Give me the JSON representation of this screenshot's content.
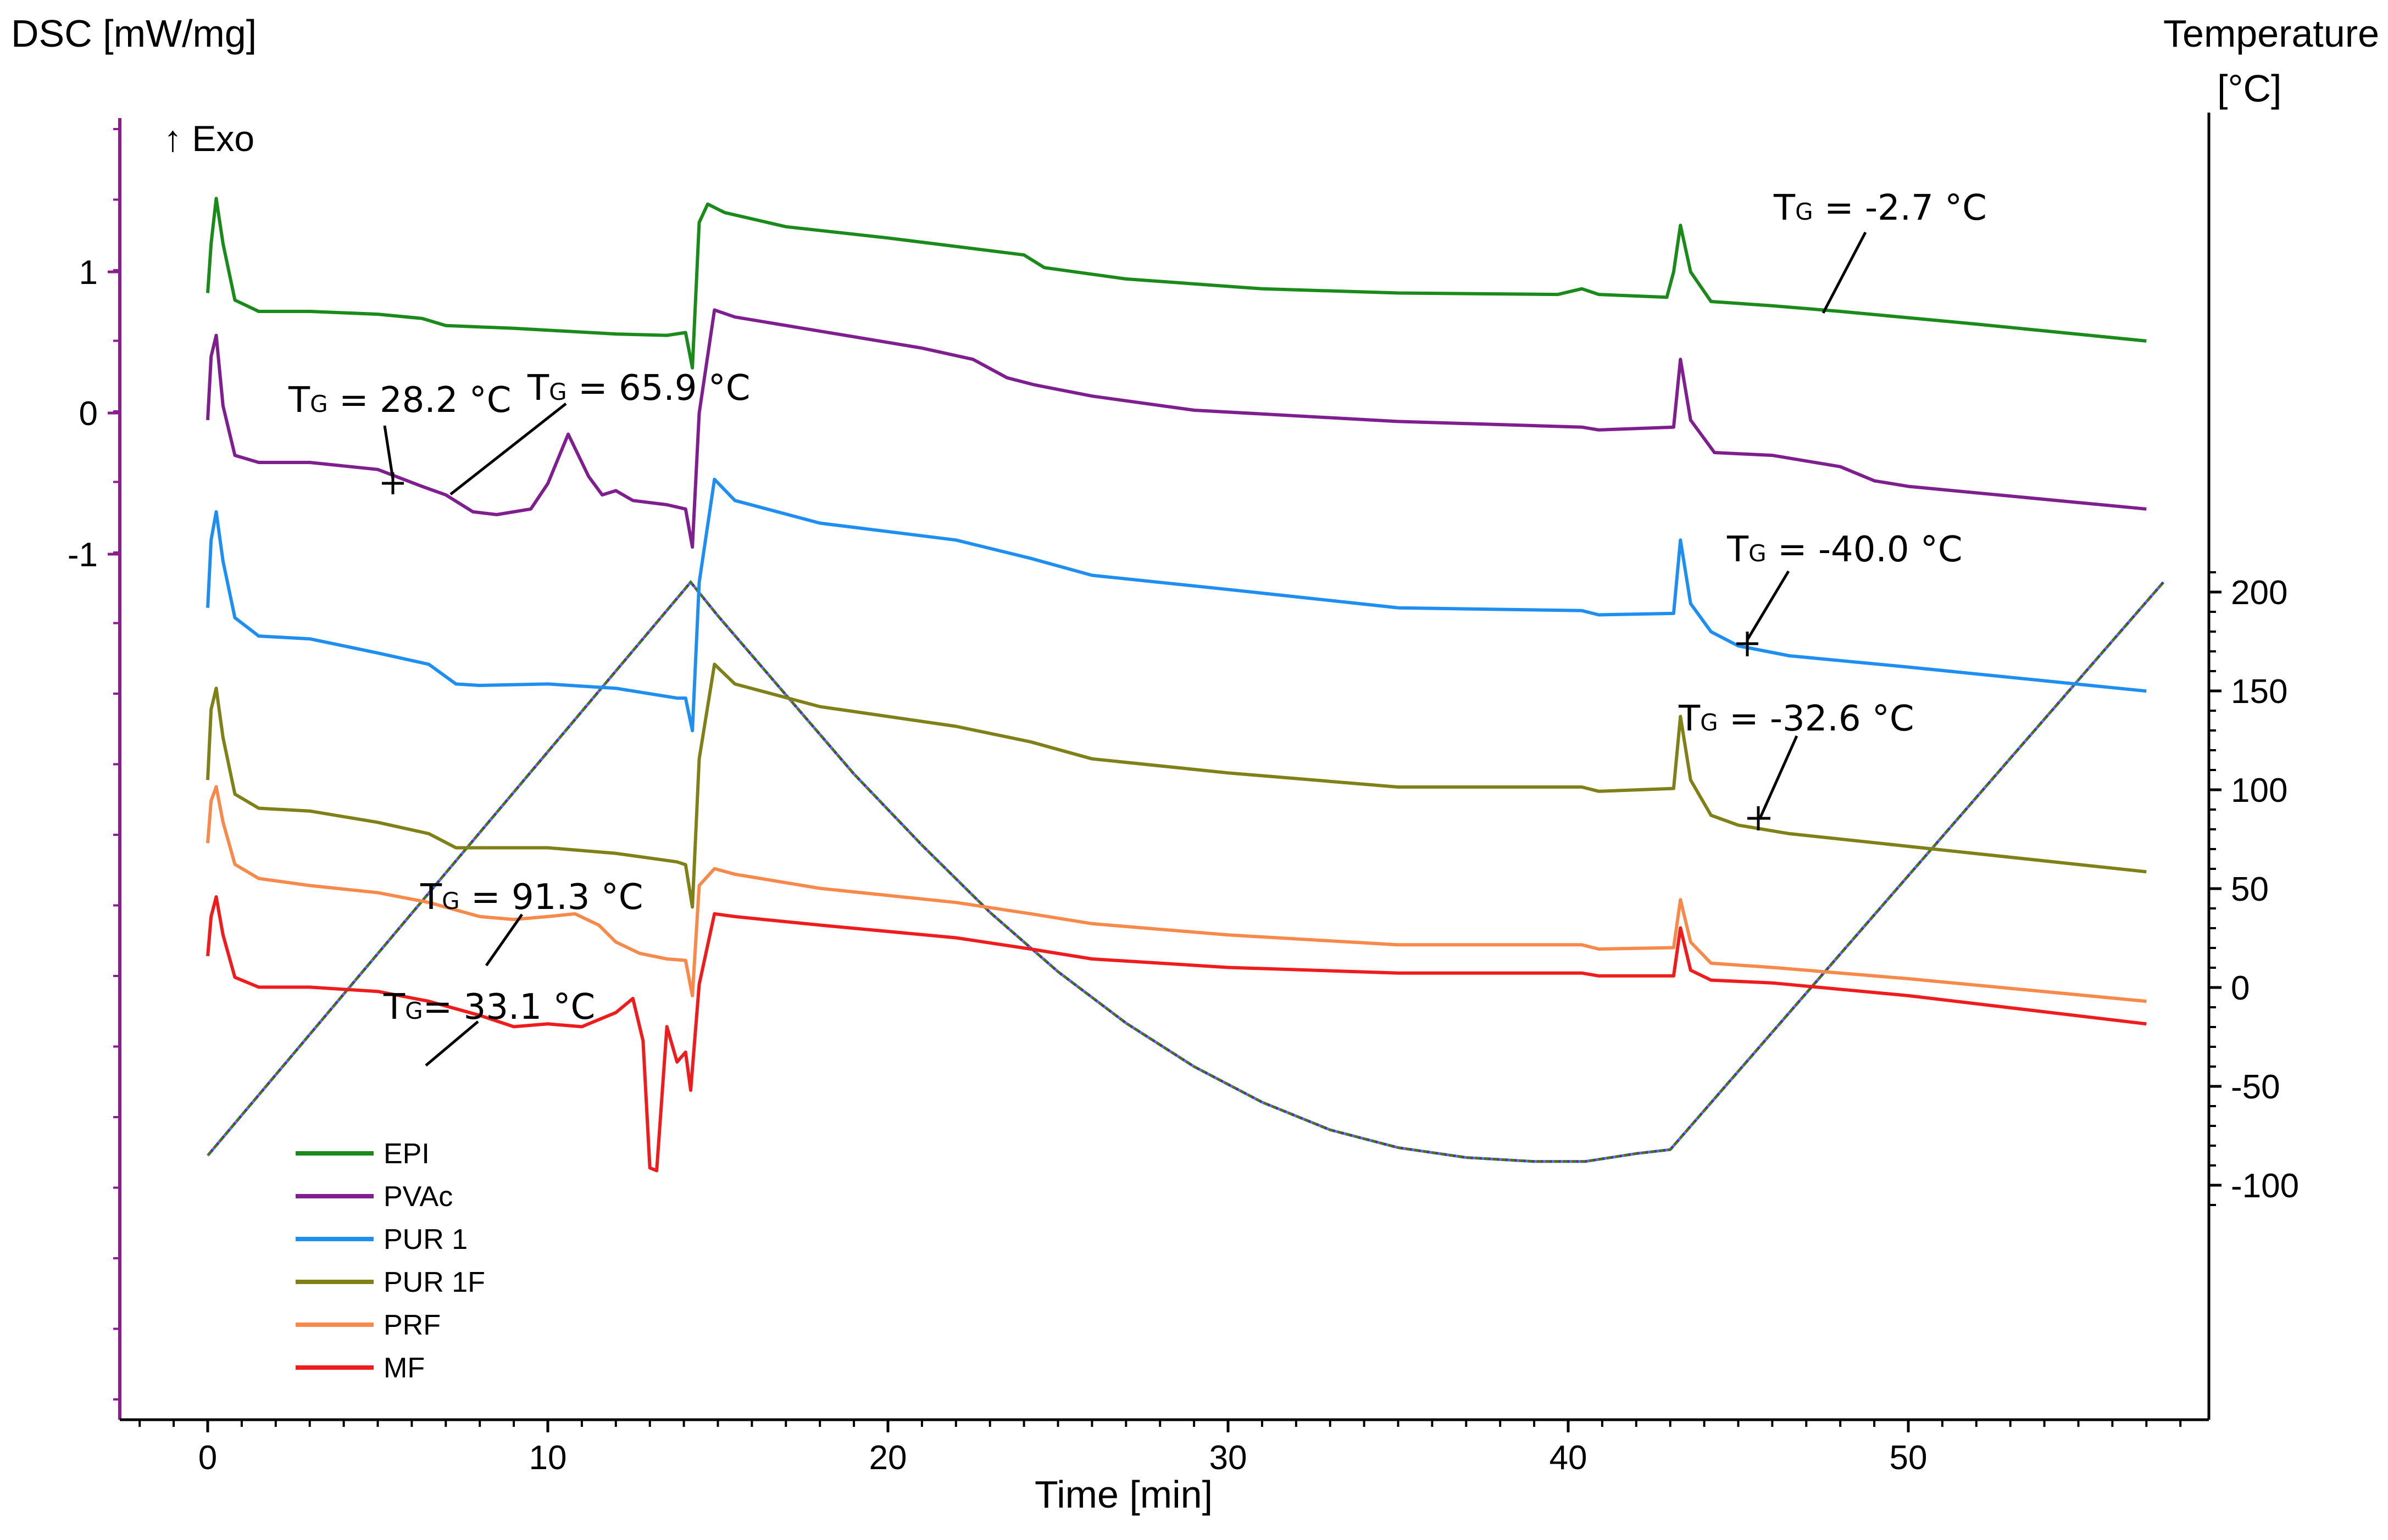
{
  "chart_data": {
    "type": "line",
    "title": "",
    "xlabel": "Time [min]",
    "ylabel_left": "DSC [mW/mg]",
    "ylabel_right": "Temperature",
    "ylabel_right_unit": "[°C]",
    "exo_label": "↑ Exo",
    "xlim": [
      -2,
      58
    ],
    "ylim_left": [
      -3.4,
      1.9
    ],
    "ylim_right": [
      -110,
      225
    ],
    "x_ticks": [
      0,
      10,
      20,
      30,
      40,
      50
    ],
    "y_left_ticks": [
      1,
      0,
      -1
    ],
    "y_right_ticks": [
      200,
      150,
      100,
      50,
      0,
      -50,
      -100
    ],
    "legend_position": "bottom-left",
    "legend": [
      "EPI",
      "PVAc",
      "PUR 1",
      "PUR 1F",
      "PRF",
      "MF"
    ],
    "colors": {
      "EPI": "#1a8a1a",
      "PVAc": "#7f1f8f",
      "PUR 1": "#1e8ff0",
      "PUR 1F": "#7f8018",
      "PRF": "#f7894a",
      "MF": "#ee1c1c",
      "axis": "#8a1e8e"
    },
    "series": [
      {
        "name": "EPI",
        "offset": 0.0,
        "x": [
          0,
          0.1,
          0.25,
          0.45,
          0.8,
          1.5,
          3,
          5,
          6.3,
          7,
          9,
          12,
          13.5,
          14.05,
          14.25,
          14.45,
          14.7,
          15.2,
          17,
          20,
          24,
          24.6,
          27,
          31,
          35,
          39.7,
          40.4,
          40.9,
          42.9,
          43.1,
          43.3,
          43.6,
          44.2,
          46,
          48,
          52,
          57
        ],
        "y": [
          0.85,
          1.2,
          1.52,
          1.2,
          0.8,
          0.72,
          0.72,
          0.7,
          0.67,
          0.62,
          0.6,
          0.56,
          0.55,
          0.57,
          0.32,
          1.35,
          1.48,
          1.42,
          1.32,
          1.24,
          1.12,
          1.03,
          0.95,
          0.88,
          0.85,
          0.84,
          0.88,
          0.84,
          0.82,
          1.0,
          1.33,
          1.0,
          0.79,
          0.76,
          0.72,
          0.63,
          0.51
        ]
      },
      {
        "name": "PVAc",
        "offset": 0.0,
        "x": [
          0,
          0.1,
          0.25,
          0.45,
          0.8,
          1.5,
          3,
          5,
          6.3,
          7,
          7.8,
          8.5,
          9.5,
          10,
          10.6,
          11.2,
          11.6,
          12,
          12.5,
          13.5,
          14.05,
          14.25,
          14.45,
          14.9,
          15.5,
          18,
          21,
          22.5,
          23.5,
          24.3,
          26,
          29,
          35,
          40.4,
          40.9,
          43.1,
          43.3,
          43.6,
          44.3,
          46,
          48,
          49,
          50,
          57
        ],
        "y": [
          -0.05,
          0.4,
          0.55,
          0.05,
          -0.3,
          -0.35,
          -0.35,
          -0.4,
          -0.52,
          -0.58,
          -0.7,
          -0.72,
          -0.68,
          -0.5,
          -0.15,
          -0.45,
          -0.58,
          -0.55,
          -0.62,
          -0.65,
          -0.68,
          -0.95,
          0.0,
          0.73,
          0.68,
          0.58,
          0.46,
          0.38,
          0.25,
          0.2,
          0.12,
          0.02,
          -0.06,
          -0.1,
          -0.12,
          -0.1,
          0.38,
          -0.05,
          -0.28,
          -0.3,
          -0.38,
          -0.48,
          -0.52,
          -0.68
        ]
      },
      {
        "name": "PUR 1",
        "offset": 0.0,
        "x": [
          0,
          0.1,
          0.25,
          0.45,
          0.8,
          1.5,
          3,
          5,
          6.5,
          7.3,
          8,
          10,
          12,
          13.8,
          14.05,
          14.25,
          14.45,
          14.9,
          15.5,
          18,
          22,
          24.2,
          26,
          30,
          35,
          40.4,
          40.9,
          43.1,
          43.3,
          43.6,
          44.2,
          45,
          46.5,
          50,
          57
        ],
        "y": [
          -1.38,
          -0.9,
          -0.7,
          -1.05,
          -1.45,
          -1.58,
          -1.6,
          -1.7,
          -1.78,
          -1.92,
          -1.93,
          -1.92,
          -1.95,
          -2.02,
          -2.02,
          -2.25,
          -1.2,
          -0.47,
          -0.62,
          -0.78,
          -0.9,
          -1.03,
          -1.15,
          -1.25,
          -1.38,
          -1.4,
          -1.43,
          -1.42,
          -0.9,
          -1.35,
          -1.55,
          -1.65,
          -1.72,
          -1.8,
          -1.97
        ]
      },
      {
        "name": "PUR 1F",
        "offset": 0.0,
        "x": [
          0,
          0.1,
          0.25,
          0.45,
          0.8,
          1.5,
          3,
          5,
          6.5,
          7.3,
          8,
          10,
          12,
          13.8,
          14.05,
          14.25,
          14.45,
          14.9,
          15.5,
          18,
          22,
          24.2,
          26,
          30,
          35,
          40.4,
          40.9,
          43.1,
          43.3,
          43.6,
          44.2,
          45,
          46.5,
          50,
          57
        ],
        "y": [
          -2.6,
          -2.1,
          -1.95,
          -2.3,
          -2.7,
          -2.8,
          -2.82,
          -2.9,
          -2.98,
          -3.08,
          -3.08,
          -3.08,
          -3.12,
          -3.18,
          -3.2,
          -3.5,
          -2.45,
          -1.78,
          -1.92,
          -2.08,
          -2.22,
          -2.33,
          -2.45,
          -2.55,
          -2.65,
          -2.65,
          -2.68,
          -2.66,
          -2.15,
          -2.6,
          -2.85,
          -2.92,
          -2.98,
          -3.07,
          -3.25
        ]
      }
    ],
    "series_lower": [
      {
        "name": "PRF",
        "x": [
          0,
          0.1,
          0.25,
          0.45,
          0.8,
          1.5,
          3,
          5,
          6.5,
          8,
          9,
          10,
          10.8,
          11.5,
          12,
          12.7,
          13.5,
          14.05,
          14.25,
          14.45,
          14.9,
          15.5,
          18,
          22,
          24.2,
          26,
          30,
          35,
          40.4,
          40.9,
          43.1,
          43.3,
          43.6,
          44.2,
          46,
          50,
          57
        ],
        "y": [
          1.3,
          1.6,
          1.7,
          1.45,
          1.15,
          1.05,
          1.0,
          0.95,
          0.88,
          0.78,
          0.76,
          0.78,
          0.8,
          0.72,
          0.6,
          0.52,
          0.48,
          0.47,
          0.22,
          1.0,
          1.12,
          1.08,
          0.98,
          0.88,
          0.8,
          0.73,
          0.65,
          0.58,
          0.58,
          0.55,
          0.56,
          0.9,
          0.6,
          0.45,
          0.42,
          0.34,
          0.18
        ]
      },
      {
        "name": "MF",
        "x": [
          0,
          0.1,
          0.25,
          0.45,
          0.8,
          1.5,
          3,
          5,
          6.5,
          8,
          9,
          10,
          11,
          12,
          12.5,
          12.8,
          13.0,
          13.2,
          13.5,
          13.8,
          14.05,
          14.2,
          14.45,
          14.9,
          15.5,
          18,
          22,
          24.2,
          26,
          30,
          35,
          40.4,
          40.9,
          43.1,
          43.3,
          43.6,
          44.2,
          46,
          50,
          57
        ],
        "y": [
          0.5,
          0.78,
          0.92,
          0.65,
          0.35,
          0.28,
          0.28,
          0.25,
          0.18,
          0.08,
          0.0,
          0.02,
          0.0,
          0.1,
          0.2,
          -0.1,
          -1.0,
          -1.02,
          0.0,
          -0.25,
          -0.18,
          -0.45,
          0.3,
          0.8,
          0.78,
          0.72,
          0.63,
          0.55,
          0.48,
          0.42,
          0.38,
          0.38,
          0.36,
          0.36,
          0.7,
          0.4,
          0.33,
          0.31,
          0.22,
          0.02
        ]
      }
    ],
    "temperature": {
      "name": "Temperature",
      "x": [
        0,
        14.2,
        15,
        17,
        19,
        21,
        23,
        25,
        27,
        29,
        31,
        33,
        35,
        37,
        39,
        40.5,
        42,
        43.0,
        57.5
      ],
      "y": [
        -85,
        205,
        188,
        148,
        108,
        72,
        38,
        8,
        -18,
        -40,
        -58,
        -72,
        -81,
        -86,
        -88,
        -88,
        -84,
        -82,
        205
      ]
    },
    "annotations": [
      {
        "label": "TG = -2.7 °C",
        "text_sub": "G",
        "pre": "T",
        "post": " = -2.7 °C"
      },
      {
        "label": "TG = 28.2 °C",
        "text_sub": "G",
        "pre": "T",
        "post": " = 28.2 °C"
      },
      {
        "label": "TG = 65.9 °C",
        "text_sub": "G",
        "pre": "T",
        "post": " = 65.9 °C"
      },
      {
        "label": "TG = -40.0 °C",
        "text_sub": "G",
        "pre": "T",
        "post": " = -40.0 °C"
      },
      {
        "label": "TG = -32.6 °C",
        "text_sub": "G",
        "pre": "T",
        "post": " = -32.6 °C"
      },
      {
        "label": "TG = 91.3 °C",
        "text_sub": "G",
        "pre": "T",
        "post": " = 91.3 °C"
      },
      {
        "label": "TG= 33.1 °C",
        "text_sub": "G",
        "pre": "T",
        "post": "= 33.1 °C"
      }
    ]
  }
}
